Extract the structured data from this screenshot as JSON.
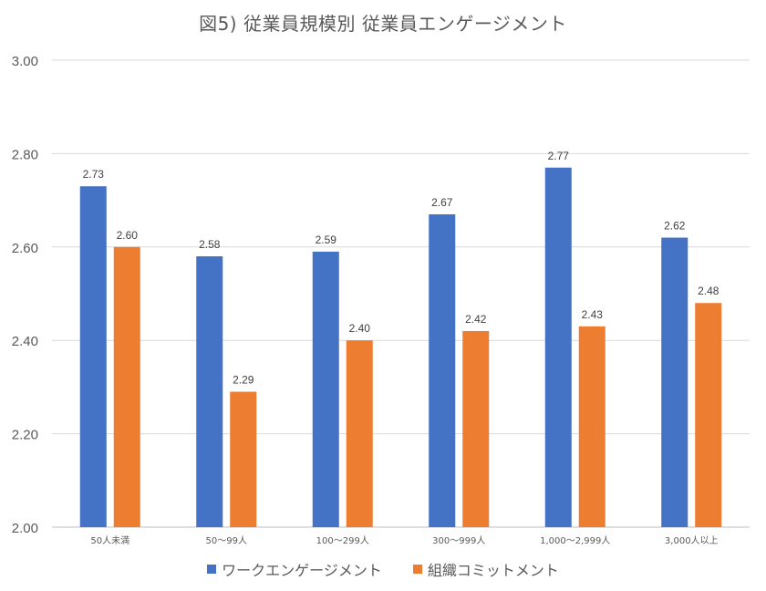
{
  "chart_data": {
    "type": "bar",
    "title": "図5) 従業員規模別 従業員エンゲージメント",
    "xlabel": "",
    "ylabel": "",
    "ylim": [
      2.0,
      3.0
    ],
    "yticks": [
      "2.00",
      "2.20",
      "2.40",
      "2.60",
      "2.80",
      "3.00"
    ],
    "ytick_values": [
      2.0,
      2.2,
      2.4,
      2.6,
      2.8,
      3.0
    ],
    "grid": true,
    "legend_position": "bottom",
    "categories": [
      "50人未満",
      "50〜99人",
      "100〜299人",
      "300〜999人",
      "1,000〜2,999人",
      "3,000人以上"
    ],
    "series": [
      {
        "name": "ワークエンゲージメント",
        "color": "#4472C4",
        "values": [
          2.73,
          2.58,
          2.59,
          2.67,
          2.77,
          2.62
        ],
        "labels": [
          "2.73",
          "2.58",
          "2.59",
          "2.67",
          "2.77",
          "2.62"
        ]
      },
      {
        "name": "組織コミットメント",
        "color": "#ED7D31",
        "values": [
          2.6,
          2.29,
          2.4,
          2.42,
          2.43,
          2.48
        ],
        "labels": [
          "2.60",
          "2.29",
          "2.40",
          "2.42",
          "2.43",
          "2.48"
        ]
      }
    ]
  }
}
